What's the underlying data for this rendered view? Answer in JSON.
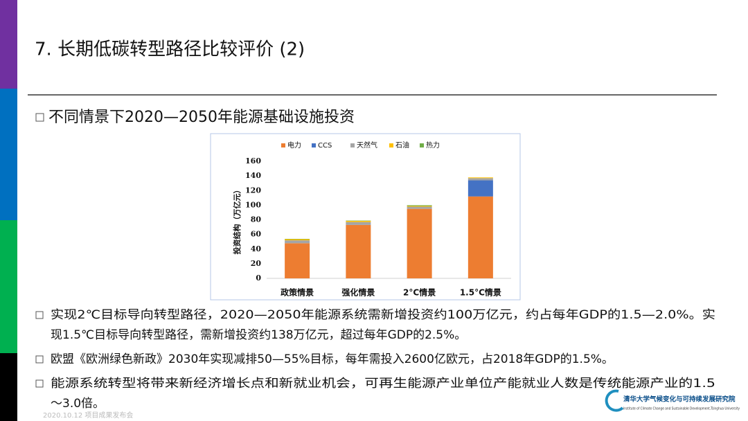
{
  "header": {
    "title": "7. 长期低碳转型路径比较评价 (2)",
    "subtitle": "不同情景下2020—2050年能源基础设施投资"
  },
  "chart_data": {
    "type": "stacked_bar",
    "y_label": "投资结构（万亿元）",
    "categories": [
      "政策情景",
      "强化情景",
      "2°C情景",
      "1.5°C情景"
    ],
    "series": [
      {
        "name": "电力",
        "color": "#ed7d31",
        "values": [
          48,
          73,
          95,
          112
        ]
      },
      {
        "name": "CCS",
        "color": "#4472c4",
        "values": [
          0,
          0,
          0,
          22
        ]
      },
      {
        "name": "天然气",
        "color": "#a5a5a5",
        "values": [
          4,
          4,
          3,
          3
        ]
      },
      {
        "name": "石油",
        "color": "#ffc000",
        "values": [
          1.5,
          1.5,
          1,
          1
        ]
      },
      {
        "name": "热力",
        "color": "#70ad47",
        "values": [
          0.5,
          0.5,
          1,
          0
        ]
      }
    ],
    "ylim": [
      0,
      160
    ],
    "yticks": [
      0,
      20,
      40,
      60,
      80,
      100,
      120,
      140,
      160
    ],
    "legend": "top"
  },
  "bullets": [
    [
      "实现2℃目标导向转型路径，2020—2050年能源系统需新增投资约100万亿元，约占每年GDP的1.5—2.0%。实",
      "现1.5℃目标导向转型路径，需新增投资约138万亿元，超过每年GDP的2.5%。"
    ],
    [
      "欧盟《欧洲绿色新政》2030年实现减排50—55%目标，每年需投入2600亿欧元，占2018年GDP的1.5%。"
    ],
    [
      "能源系统转型将带来新经济增长点和新就业机会，可再生能源产业单位产能就业人数是传统能源产业的1.5",
      "～3.0倍。"
    ]
  ],
  "footer": {
    "date": "2020.10.12  项目成果发布会",
    "org_cn": "清华大学气候变化与可持续发展研究院",
    "org_en": "Institute of Climate Change and Sustainable Development,Tsinghua University"
  }
}
